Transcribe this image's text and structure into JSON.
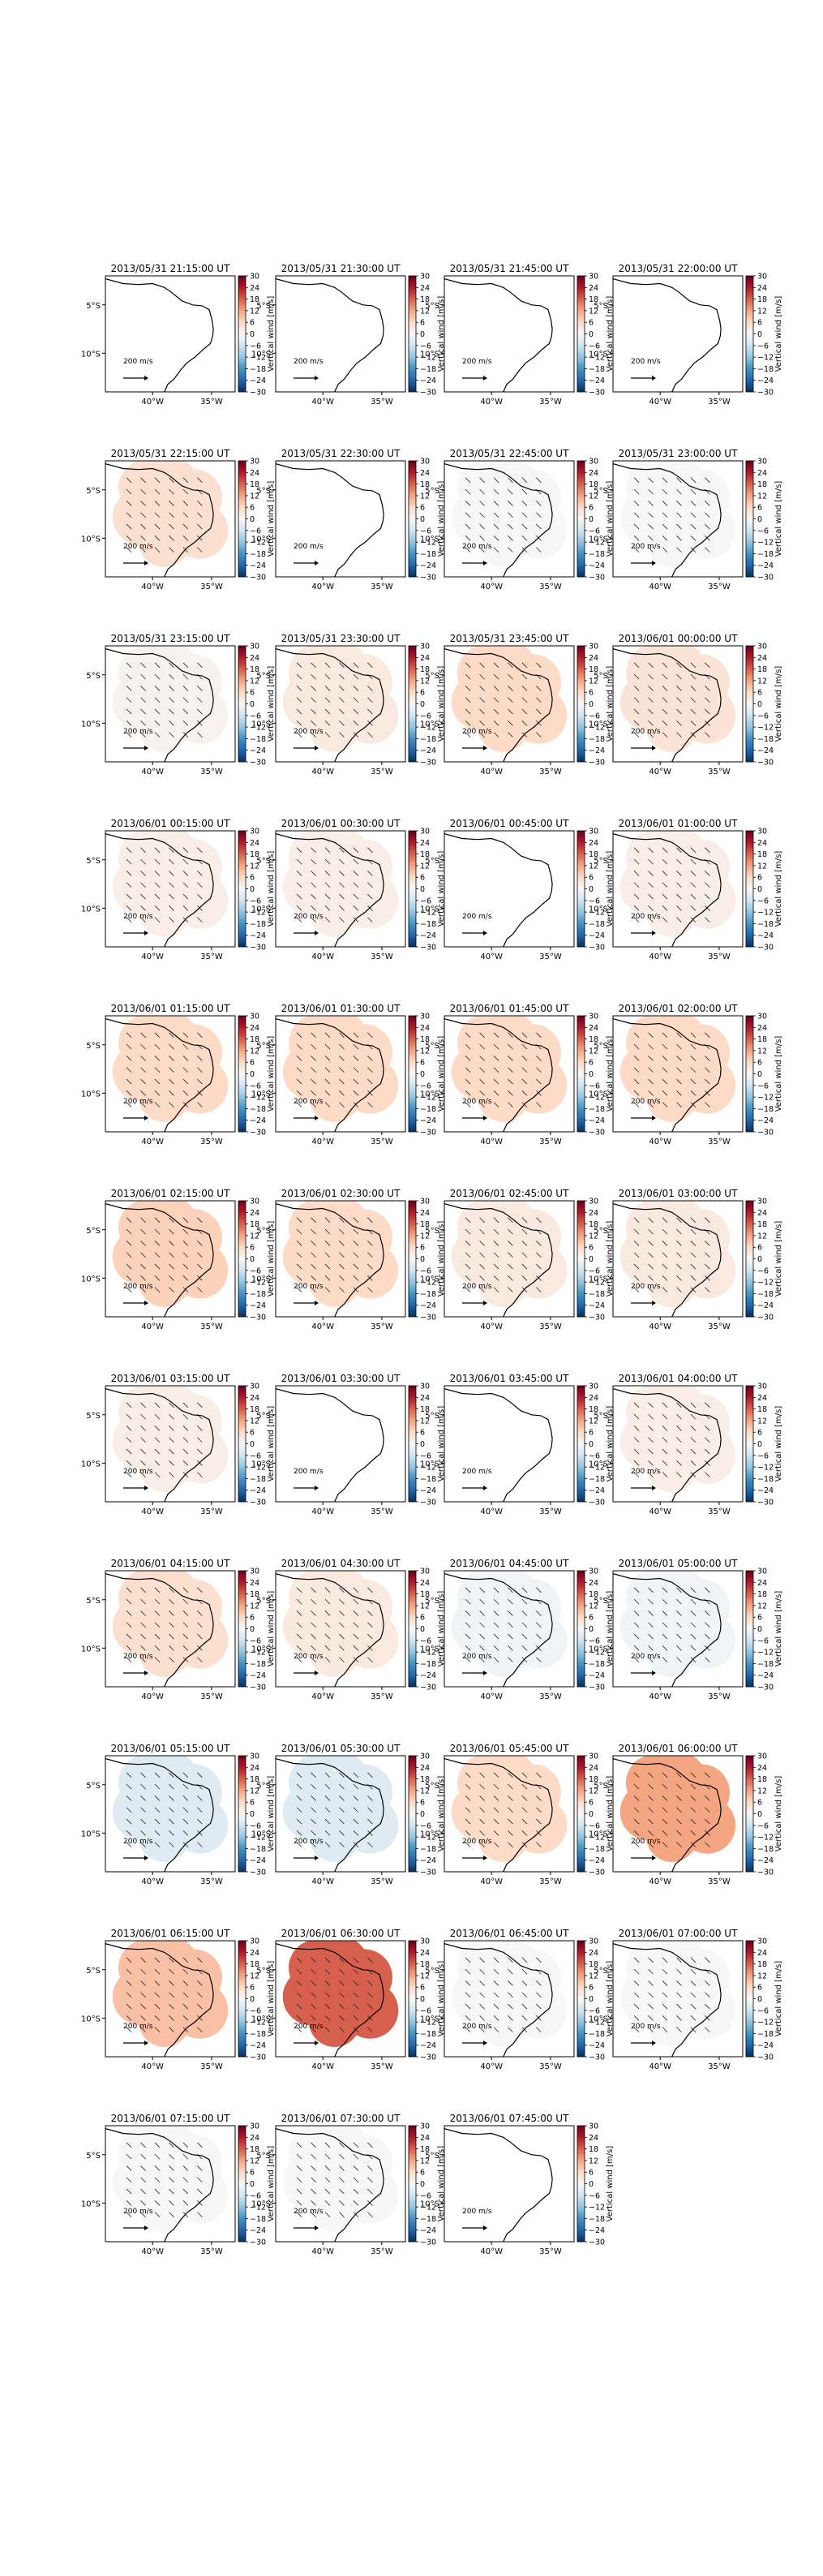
{
  "figure": {
    "units_label": "Vertical wind [m/s]",
    "reference_vector_label": "200 m/s"
  },
  "colormap": {
    "name": "RdBu_r",
    "stops": [
      "#053061",
      "#2166ac",
      "#4393c3",
      "#92c5de",
      "#d1e5f0",
      "#f7f7f7",
      "#fddbc7",
      "#f4a582",
      "#d6604d",
      "#b2182b",
      "#67001f"
    ],
    "vmin": -30,
    "vmax": 30,
    "ticks": [
      "30",
      "24",
      "18",
      "12",
      "6",
      "0",
      "−6",
      "−12",
      "−18",
      "−24",
      "−30"
    ]
  },
  "map": {
    "lat_ticks": [
      "5°S",
      "10°S"
    ],
    "lon_ticks": [
      "40°W",
      "35°W"
    ],
    "lon_range": [
      -44,
      -33
    ],
    "lat_range": [
      -14,
      -2
    ]
  },
  "chart_data": [
    {
      "type": "heatmap",
      "title": "2013/05/31 21:15:00 UT",
      "vertical_wind": null
    },
    {
      "type": "heatmap",
      "title": "2013/05/31 21:30:00 UT",
      "vertical_wind": null
    },
    {
      "type": "heatmap",
      "title": "2013/05/31 21:45:00 UT",
      "vertical_wind": null
    },
    {
      "type": "heatmap",
      "title": "2013/05/31 22:00:00 UT",
      "vertical_wind": null
    },
    {
      "type": "heatmap",
      "title": "2013/05/31 22:15:00 UT",
      "vertical_wind": 5
    },
    {
      "type": "heatmap",
      "title": "2013/05/31 22:30:00 UT",
      "vertical_wind": null
    },
    {
      "type": "heatmap",
      "title": "2013/05/31 22:45:00 UT",
      "vertical_wind": 0
    },
    {
      "type": "heatmap",
      "title": "2013/05/31 23:00:00 UT",
      "vertical_wind": 0
    },
    {
      "type": "heatmap",
      "title": "2013/05/31 23:15:00 UT",
      "vertical_wind": 1
    },
    {
      "type": "heatmap",
      "title": "2013/05/31 23:30:00 UT",
      "vertical_wind": 3
    },
    {
      "type": "heatmap",
      "title": "2013/05/31 23:45:00 UT",
      "vertical_wind": 6
    },
    {
      "type": "heatmap",
      "title": "2013/06/01 00:00:00 UT",
      "vertical_wind": 4
    },
    {
      "type": "heatmap",
      "title": "2013/06/01 00:15:00 UT",
      "vertical_wind": 2
    },
    {
      "type": "heatmap",
      "title": "2013/06/01 00:30:00 UT",
      "vertical_wind": 2
    },
    {
      "type": "heatmap",
      "title": "2013/06/01 00:45:00 UT",
      "vertical_wind": null
    },
    {
      "type": "heatmap",
      "title": "2013/06/01 01:00:00 UT",
      "vertical_wind": 2
    },
    {
      "type": "heatmap",
      "title": "2013/06/01 01:15:00 UT",
      "vertical_wind": 6
    },
    {
      "type": "heatmap",
      "title": "2013/06/01 01:30:00 UT",
      "vertical_wind": 6
    },
    {
      "type": "heatmap",
      "title": "2013/06/01 01:45:00 UT",
      "vertical_wind": 6
    },
    {
      "type": "heatmap",
      "title": "2013/06/01 02:00:00 UT",
      "vertical_wind": 6
    },
    {
      "type": "heatmap",
      "title": "2013/06/01 02:15:00 UT",
      "vertical_wind": 7
    },
    {
      "type": "heatmap",
      "title": "2013/06/01 02:30:00 UT",
      "vertical_wind": 6
    },
    {
      "type": "heatmap",
      "title": "2013/06/01 02:45:00 UT",
      "vertical_wind": 3
    },
    {
      "type": "heatmap",
      "title": "2013/06/01 03:00:00 UT",
      "vertical_wind": 3
    },
    {
      "type": "heatmap",
      "title": "2013/06/01 03:15:00 UT",
      "vertical_wind": 2
    },
    {
      "type": "heatmap",
      "title": "2013/06/01 03:30:00 UT",
      "vertical_wind": null
    },
    {
      "type": "heatmap",
      "title": "2013/06/01 03:45:00 UT",
      "vertical_wind": null
    },
    {
      "type": "heatmap",
      "title": "2013/06/01 04:00:00 UT",
      "vertical_wind": 2
    },
    {
      "type": "heatmap",
      "title": "2013/06/01 04:15:00 UT",
      "vertical_wind": 5
    },
    {
      "type": "heatmap",
      "title": "2013/06/01 04:30:00 UT",
      "vertical_wind": 3
    },
    {
      "type": "heatmap",
      "title": "2013/06/01 04:45:00 UT",
      "vertical_wind": -1
    },
    {
      "type": "heatmap",
      "title": "2013/06/01 05:00:00 UT",
      "vertical_wind": -1
    },
    {
      "type": "heatmap",
      "title": "2013/06/01 05:15:00 UT",
      "vertical_wind": -4
    },
    {
      "type": "heatmap",
      "title": "2013/06/01 05:30:00 UT",
      "vertical_wind": -4
    },
    {
      "type": "heatmap",
      "title": "2013/06/01 05:45:00 UT",
      "vertical_wind": 6
    },
    {
      "type": "heatmap",
      "title": "2013/06/01 06:00:00 UT",
      "vertical_wind": 12
    },
    {
      "type": "heatmap",
      "title": "2013/06/01 06:15:00 UT",
      "vertical_wind": 9
    },
    {
      "type": "heatmap",
      "title": "2013/06/01 06:30:00 UT",
      "vertical_wind": 18
    },
    {
      "type": "heatmap",
      "title": "2013/06/01 06:45:00 UT",
      "vertical_wind": 0
    },
    {
      "type": "heatmap",
      "title": "2013/06/01 07:00:00 UT",
      "vertical_wind": 0
    },
    {
      "type": "heatmap",
      "title": "2013/06/01 07:15:00 UT",
      "vertical_wind": 0
    },
    {
      "type": "heatmap",
      "title": "2013/06/01 07:30:00 UT",
      "vertical_wind": 0
    },
    {
      "type": "heatmap",
      "title": "2013/06/01 07:45:00 UT",
      "vertical_wind": null
    }
  ]
}
